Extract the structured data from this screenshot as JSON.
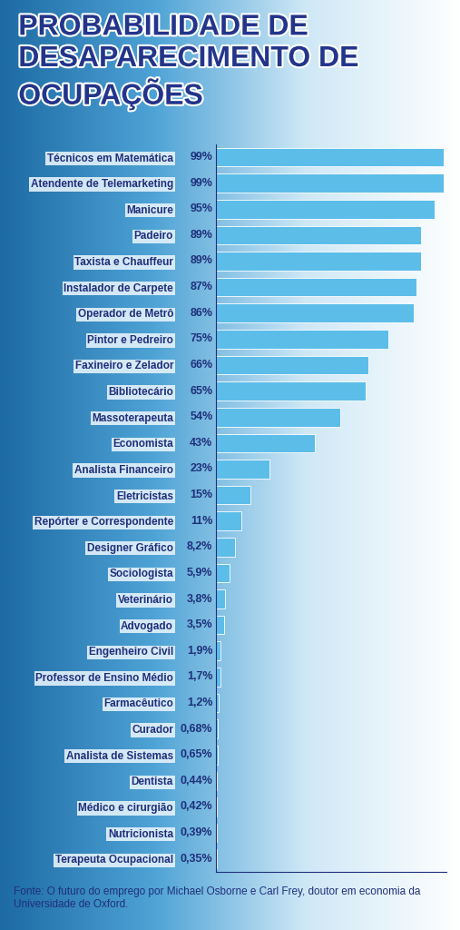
{
  "chart_data": {
    "type": "bar",
    "orientation": "horizontal",
    "title": "PROBABILIDADE DE DESAPARECIMENTO DE OCUPAÇÕES",
    "categories": [
      "Técnicos em Matemática",
      "Atendente de Telemarketing",
      "Manicure",
      "Padeiro",
      "Taxista e Chauffeur",
      "Instalador de Carpete",
      "Operador de Metrô",
      "Pintor e Pedreiro",
      "Faxineiro e Zelador",
      "Bibliotecário",
      "Massoterapeuta",
      "Economista",
      "Analista Financeiro",
      "Eletricistas",
      "Repórter e Correspondente",
      "Designer Gráfico",
      "Sociologista",
      "Veterinário",
      "Advogado",
      "Engenheiro Civil",
      "Professor de Ensino Médio",
      "Farmacêutico",
      "Curador",
      "Analista de Sistemas",
      "Dentista",
      "Médico e cirurgião",
      "Nutricionista",
      "Terapeuta Ocupacional"
    ],
    "values": [
      99,
      99,
      95,
      89,
      89,
      87,
      86,
      75,
      66,
      65,
      54,
      43,
      23,
      15,
      11,
      8.2,
      5.9,
      3.8,
      3.5,
      1.9,
      1.7,
      1.2,
      0.68,
      0.65,
      0.44,
      0.42,
      0.39,
      0.35
    ],
    "value_labels": [
      "99%",
      "99%",
      "95%",
      "89%",
      "89%",
      "87%",
      "86%",
      "75%",
      "66%",
      "65%",
      "54%",
      "43%",
      "23%",
      "15%",
      "11%",
      "8,2%",
      "5,9%",
      "3,8%",
      "3,5%",
      "1,9%",
      "1,7%",
      "1,2%",
      "0,68%",
      "0,65%",
      "0,44%",
      "0,42%",
      "0,39%",
      "0,35%"
    ],
    "color": "#5cbde9",
    "xlim": [
      0,
      100
    ],
    "xticks": [],
    "grid": false,
    "data_labels": true,
    "tick_labels": "y",
    "annotations": [
      "Fonte: O futuro do emprego por Michael Osborne e Carl Frey, doutor em economia da Universidade de Oxford."
    ]
  }
}
